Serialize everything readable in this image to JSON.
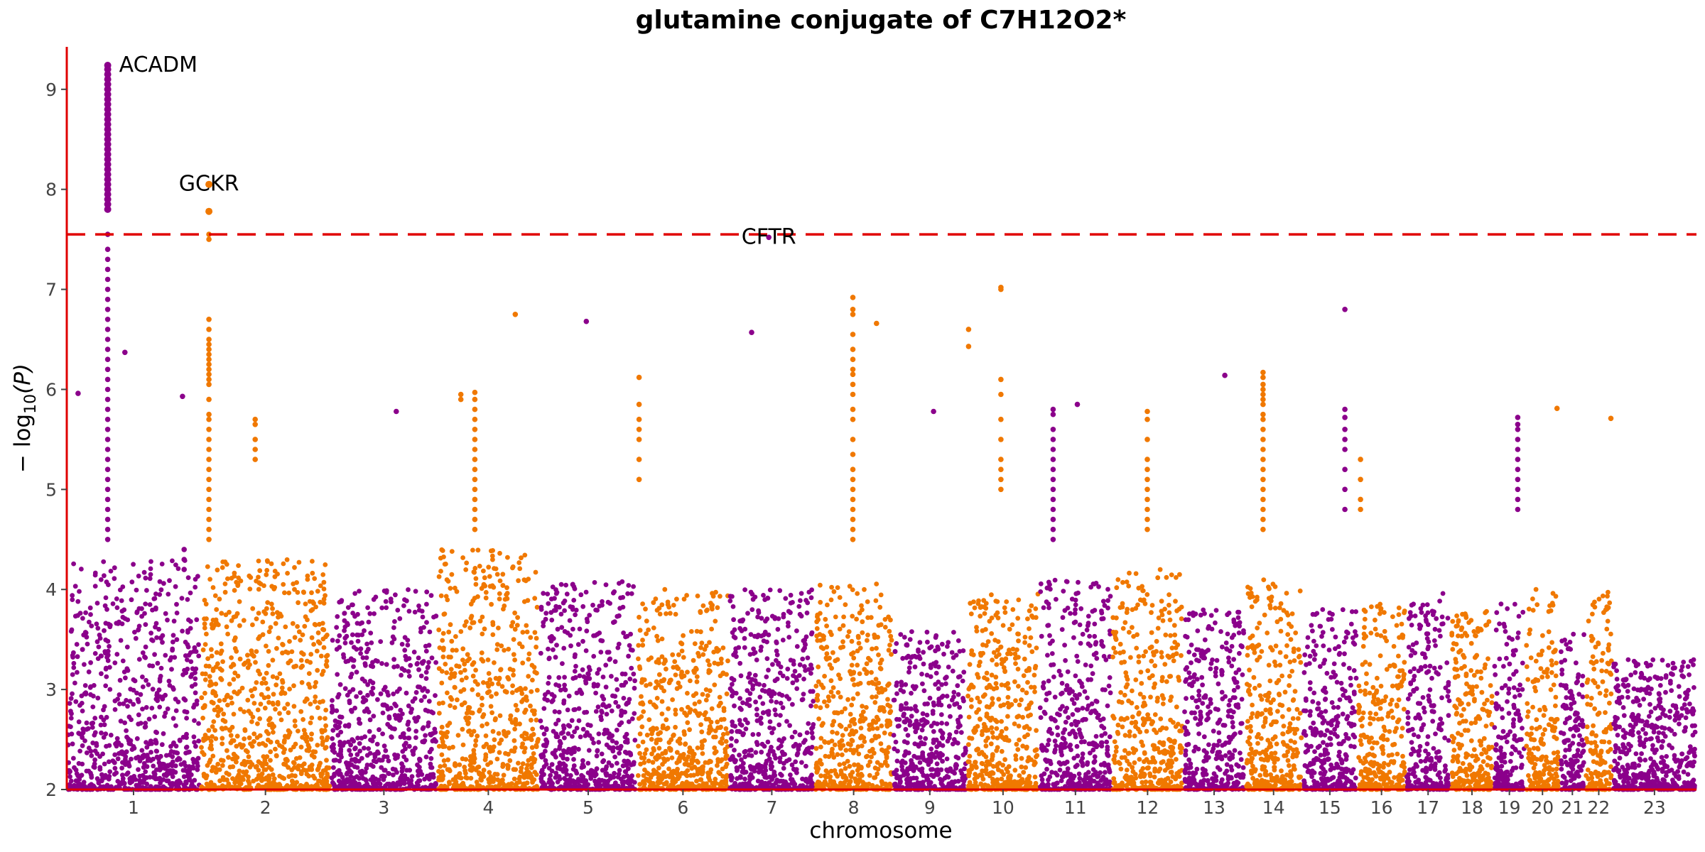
{
  "chart_data": {
    "type": "scatter",
    "title": "glutamine conjugate of C7H12O2*",
    "xlabel": "chromosome",
    "ylabel_prefix": "− log",
    "ylabel_sub": "10",
    "ylabel_arg": "(P)",
    "ylim": [
      2,
      9.4
    ],
    "yticks": [
      2,
      3,
      4,
      5,
      6,
      7,
      8,
      9
    ],
    "significance_line": 7.55,
    "colors": {
      "odd_chrom": "#8b008b",
      "even_chrom": "#f07800",
      "axis": "#e00000",
      "threshold": "#e00000"
    },
    "chromosomes": [
      {
        "label": "1",
        "start": 0,
        "end": 248,
        "peak": 4.3
      },
      {
        "label": "2",
        "start": 248,
        "end": 490,
        "peak": 4.3
      },
      {
        "label": "3",
        "start": 490,
        "end": 688,
        "peak": 4.0
      },
      {
        "label": "4",
        "start": 688,
        "end": 878,
        "peak": 4.4
      },
      {
        "label": "5",
        "start": 878,
        "end": 1059,
        "peak": 4.1
      },
      {
        "label": "6",
        "start": 1059,
        "end": 1230,
        "peak": 4.0
      },
      {
        "label": "7",
        "start": 1230,
        "end": 1389,
        "peak": 4.0
      },
      {
        "label": "8",
        "start": 1389,
        "end": 1534,
        "peak": 4.1
      },
      {
        "label": "9",
        "start": 1534,
        "end": 1672,
        "peak": 3.6
      },
      {
        "label": "10",
        "start": 1672,
        "end": 1806,
        "peak": 4.0
      },
      {
        "label": "11",
        "start": 1806,
        "end": 1941,
        "peak": 4.1
      },
      {
        "label": "12",
        "start": 1941,
        "end": 2074,
        "peak": 4.2
      },
      {
        "label": "13",
        "start": 2074,
        "end": 2188,
        "peak": 3.8
      },
      {
        "label": "14",
        "start": 2188,
        "end": 2295,
        "peak": 4.1
      },
      {
        "label": "15",
        "start": 2295,
        "end": 2397,
        "peak": 3.8
      },
      {
        "label": "16",
        "start": 2397,
        "end": 2487,
        "peak": 3.9
      },
      {
        "label": "17",
        "start": 2487,
        "end": 2570,
        "peak": 4.0
      },
      {
        "label": "18",
        "start": 2570,
        "end": 2650,
        "peak": 3.8
      },
      {
        "label": "19",
        "start": 2650,
        "end": 2709,
        "peak": 3.9
      },
      {
        "label": "20",
        "start": 2709,
        "end": 2773,
        "peak": 4.0
      },
      {
        "label": "21",
        "start": 2773,
        "end": 2820,
        "peak": 3.6
      },
      {
        "label": "22",
        "start": 2820,
        "end": 2871,
        "peak": 4.0
      },
      {
        "label": "23",
        "start": 2871,
        "end": 3027,
        "peak": 3.3
      }
    ],
    "hits": [
      {
        "chrom": "1",
        "pos": 76,
        "values": [
          9.24,
          9.2,
          9.15,
          9.1,
          9.05,
          9.0,
          8.95,
          8.9,
          8.85,
          8.8,
          8.75,
          8.7,
          8.65,
          8.6,
          8.55,
          8.5,
          8.45,
          8.4,
          8.35,
          8.3,
          8.25,
          8.2,
          8.15,
          8.1,
          8.05,
          8.0,
          7.95,
          7.9,
          7.85,
          7.8,
          7.55,
          7.4,
          7.3,
          7.2,
          7.1,
          7.0,
          6.9,
          6.8,
          6.7,
          6.6,
          6.5,
          6.4,
          6.3,
          6.2,
          6.1,
          6.0,
          5.9,
          5.8,
          5.7,
          5.6,
          5.5,
          5.4,
          5.3,
          5.2,
          5.1,
          5.0,
          4.9,
          4.8,
          4.7,
          4.6,
          4.5
        ]
      },
      {
        "chrom": "2",
        "pos": 264,
        "values": [
          8.05,
          7.78,
          7.55,
          7.5,
          6.7,
          6.6,
          6.5,
          6.45,
          6.4,
          6.35,
          6.3,
          6.25,
          6.2,
          6.15,
          6.1,
          6.05,
          5.9,
          5.75,
          5.7,
          5.6,
          5.5,
          5.4,
          5.3,
          5.2,
          5.1,
          5.0,
          4.9,
          4.8,
          4.7,
          4.6,
          4.5
        ]
      },
      {
        "chrom": "7",
        "pos": 1304,
        "values": [
          7.52
        ]
      },
      {
        "chrom": "8",
        "pos": 1460,
        "values": [
          6.92,
          6.8,
          6.75,
          6.55,
          6.4,
          6.3,
          6.2,
          6.15,
          6.05,
          5.95,
          5.8,
          5.7,
          5.5,
          5.35,
          5.2,
          5.1,
          5.0,
          4.9,
          4.8,
          4.7,
          4.6,
          4.5
        ]
      },
      {
        "chrom": "10",
        "pos": 1735,
        "values": [
          7.02,
          7.0,
          6.1,
          5.95,
          5.7,
          5.5,
          5.3,
          5.2,
          5.1,
          5.0
        ]
      },
      {
        "chrom": "14",
        "pos": 2222,
        "values": [
          6.17,
          6.12,
          6.05,
          6.0,
          5.95,
          5.9,
          5.85,
          5.75,
          5.7,
          5.6,
          5.5,
          5.4,
          5.3,
          5.2,
          5.1,
          5.0,
          4.9,
          4.8,
          4.7,
          4.6
        ]
      },
      {
        "chrom": "15",
        "pos": 2374,
        "values": [
          6.8,
          5.8,
          5.72,
          5.6,
          5.5,
          5.4,
          5.2,
          5.0,
          4.8
        ]
      },
      {
        "chrom": "11",
        "pos": 1832,
        "values": [
          5.8,
          5.75,
          5.6,
          5.5,
          5.4,
          5.3,
          5.2,
          5.1,
          5.0,
          4.9,
          4.8,
          4.7,
          4.6,
          4.5
        ]
      },
      {
        "chrom": "4",
        "pos": 758,
        "values": [
          5.97,
          5.9,
          5.8,
          5.7,
          5.6,
          5.5,
          5.4,
          5.3,
          5.2,
          5.1,
          5.0,
          4.9,
          4.8,
          4.7,
          4.6
        ]
      },
      {
        "chrom": "19",
        "pos": 2695,
        "values": [
          5.72,
          5.65,
          5.6,
          5.5,
          5.4,
          5.3,
          5.2,
          5.1,
          5.0,
          4.9,
          4.8
        ]
      },
      {
        "chrom": "12",
        "pos": 2007,
        "values": [
          5.78,
          5.7,
          5.5,
          5.3,
          5.2,
          5.1,
          5.0,
          4.9,
          4.8,
          4.7,
          4.6
        ]
      },
      {
        "chrom": "6",
        "pos": 1063,
        "values": [
          6.12,
          5.85,
          5.7,
          5.6,
          5.5,
          5.3,
          5.1
        ]
      },
      {
        "chrom": "4",
        "pos": 833,
        "values": [
          6.75
        ]
      },
      {
        "chrom": "5",
        "pos": 965,
        "values": [
          6.68
        ]
      },
      {
        "chrom": "7",
        "pos": 1272,
        "values": [
          6.57
        ]
      },
      {
        "chrom": "8",
        "pos": 1504,
        "values": [
          6.66
        ]
      },
      {
        "chrom": "10",
        "pos": 1675,
        "values": [
          6.6,
          6.43
        ]
      },
      {
        "chrom": "1",
        "pos": 108,
        "values": [
          6.37
        ]
      },
      {
        "chrom": "13",
        "pos": 2151,
        "values": [
          6.14
        ]
      },
      {
        "chrom": "1",
        "pos": 215,
        "values": [
          5.93
        ]
      },
      {
        "chrom": "1",
        "pos": 21,
        "values": [
          5.96
        ]
      },
      {
        "chrom": "2",
        "pos": 350,
        "values": [
          5.7,
          5.65,
          5.5,
          5.4,
          5.3
        ]
      },
      {
        "chrom": "3",
        "pos": 612,
        "values": [
          5.78
        ]
      },
      {
        "chrom": "4",
        "pos": 732,
        "values": [
          5.95,
          5.9
        ]
      },
      {
        "chrom": "9",
        "pos": 1610,
        "values": [
          5.78
        ]
      },
      {
        "chrom": "16",
        "pos": 2403,
        "values": [
          5.3,
          5.1,
          4.9,
          4.8
        ]
      },
      {
        "chrom": "20",
        "pos": 2768,
        "values": [
          5.81
        ]
      },
      {
        "chrom": "22",
        "pos": 2868,
        "values": [
          5.71
        ]
      },
      {
        "chrom": "11",
        "pos": 1877,
        "values": [
          5.85
        ]
      },
      {
        "chrom": "1",
        "pos": 218,
        "values": [
          4.4,
          4.3,
          4.2
        ]
      }
    ],
    "annotations": [
      {
        "label": "ACADM",
        "chrom": "1",
        "pos": 76,
        "y": 9.24
      },
      {
        "label": "GCKR",
        "chrom": "2",
        "pos": 264,
        "y": 8.05
      },
      {
        "label": "CFTR",
        "chrom": "7",
        "pos": 1304,
        "y": 7.52
      }
    ]
  }
}
